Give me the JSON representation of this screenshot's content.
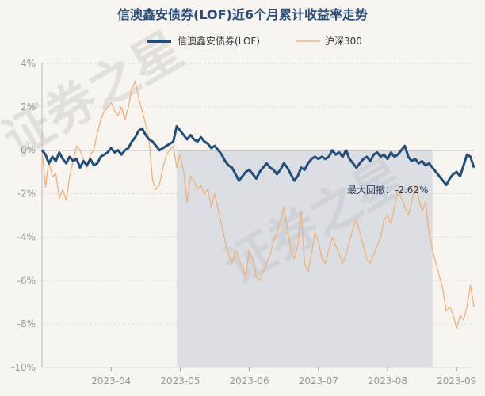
{
  "chart_data": {
    "type": "line",
    "title": "信澳鑫安债券(LOF)近6个月累计收益率走势",
    "ylim": [
      -10,
      4
    ],
    "ytick_labels": [
      "4%",
      "2%",
      "0%",
      "-2%",
      "-4%",
      "-6%",
      "-8%",
      "-10%"
    ],
    "yticks": [
      4,
      2,
      0,
      -2,
      -4,
      -6,
      -8,
      -10
    ],
    "x_month_labels": [
      "2023-04",
      "2023-05",
      "2023-06",
      "2023-07",
      "2023-08",
      "2023-09"
    ],
    "x_month_positions": [
      20,
      40,
      60,
      80,
      100,
      120
    ],
    "x_count": 126,
    "annotation": "最大回撤：-2.62%",
    "drawdown_range_index": [
      39,
      113
    ],
    "watermark": "证券之星",
    "colors": {
      "fund": "#1f4e79",
      "index": "#f0b27a",
      "title": "#2a4d7a",
      "shade": "#b9c3d1"
    },
    "series": [
      {
        "name": "信澳鑫安债券(LOF)",
        "values": [
          0.0,
          -0.2,
          -0.6,
          -0.3,
          -0.5,
          -0.1,
          -0.4,
          -0.6,
          -0.3,
          -0.5,
          -0.4,
          -0.8,
          -0.5,
          -0.7,
          -0.4,
          -0.7,
          -0.6,
          -0.3,
          -0.2,
          -0.1,
          0.1,
          -0.1,
          0.0,
          -0.2,
          0.0,
          0.1,
          0.4,
          0.6,
          0.9,
          1.0,
          0.7,
          0.5,
          0.4,
          0.2,
          0.0,
          0.1,
          0.2,
          0.3,
          0.4,
          1.1,
          0.9,
          0.7,
          0.5,
          0.7,
          0.5,
          0.4,
          0.6,
          0.4,
          0.3,
          0.1,
          0.2,
          0.0,
          -0.2,
          -0.5,
          -0.7,
          -0.8,
          -1.1,
          -1.4,
          -1.2,
          -1.0,
          -0.9,
          -1.1,
          -1.3,
          -1.0,
          -0.8,
          -0.6,
          -0.8,
          -0.9,
          -1.1,
          -0.9,
          -0.6,
          -0.8,
          -1.1,
          -1.4,
          -1.2,
          -0.8,
          -0.9,
          -0.6,
          -0.4,
          -0.3,
          -0.4,
          -0.3,
          -0.4,
          -0.3,
          0.0,
          -0.2,
          -0.1,
          -0.3,
          0.0,
          -0.4,
          -0.6,
          -0.8,
          -0.6,
          -0.4,
          -0.3,
          -0.5,
          -0.2,
          -0.1,
          -0.3,
          -0.2,
          -0.4,
          -0.1,
          -0.3,
          -0.2,
          0.0,
          0.2,
          -0.3,
          -0.5,
          -0.4,
          -0.6,
          -0.5,
          -0.7,
          -0.6,
          -0.8,
          -1.0,
          -1.2,
          -1.4,
          -1.6,
          -1.3,
          -1.1,
          -1.0,
          -1.2,
          -0.7,
          -0.2,
          -0.3,
          -0.8
        ]
      },
      {
        "name": "沪深300",
        "values": [
          0.0,
          -1.7,
          -0.5,
          -1.2,
          -1.1,
          -2.2,
          -1.8,
          -2.3,
          -1.2,
          -0.5,
          0.2,
          0.0,
          -0.4,
          -0.8,
          -0.2,
          0.0,
          0.8,
          1.4,
          1.8,
          2.0,
          2.2,
          1.8,
          1.6,
          2.0,
          1.4,
          2.0,
          2.8,
          3.2,
          2.4,
          1.8,
          1.2,
          0.4,
          -1.4,
          -1.8,
          -1.6,
          -0.8,
          -0.2,
          0.0,
          0.2,
          -0.8,
          -0.2,
          -1.0,
          -2.4,
          -1.2,
          -1.4,
          -1.8,
          -1.6,
          -2.0,
          -1.8,
          -2.6,
          -2.0,
          -2.8,
          -3.4,
          -4.2,
          -4.8,
          -5.2,
          -4.6,
          -5.0,
          -5.4,
          -5.8,
          -4.6,
          -5.0,
          -5.8,
          -6.0,
          -5.6,
          -5.2,
          -4.8,
          -4.2,
          -3.8,
          -3.2,
          -2.6,
          -3.6,
          -4.6,
          -5.0,
          -4.4,
          -2.8,
          -5.2,
          -5.6,
          -4.8,
          -3.8,
          -4.2,
          -5.0,
          -5.2,
          -4.6,
          -4.0,
          -4.4,
          -4.8,
          -5.2,
          -4.8,
          -4.2,
          -3.6,
          -3.2,
          -3.8,
          -4.4,
          -5.0,
          -5.2,
          -4.8,
          -4.4,
          -4.0,
          -3.2,
          -3.0,
          -3.4,
          -2.6,
          -1.8,
          -2.2,
          -2.6,
          -3.0,
          -2.4,
          -1.6,
          -2.2,
          -2.8,
          -2.4,
          -3.8,
          -4.6,
          -5.2,
          -5.8,
          -6.4,
          -7.4,
          -7.2,
          -7.6,
          -8.2,
          -7.6,
          -7.8,
          -7.2,
          -6.2,
          -7.2
        ]
      }
    ]
  }
}
